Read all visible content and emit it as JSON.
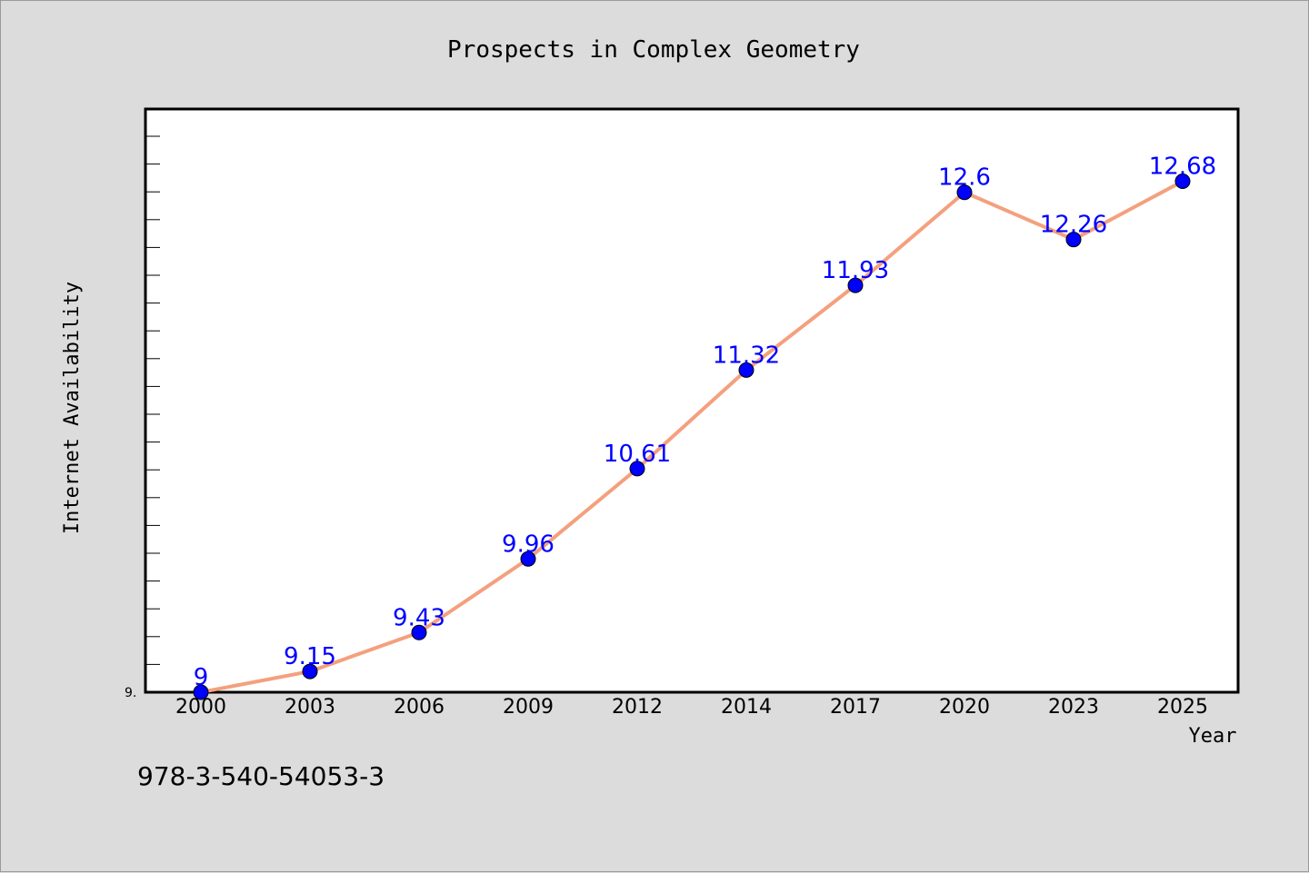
{
  "footer_text": "978-3-540-54053-3",
  "chart_data": {
    "type": "line",
    "title": "Prospects in Complex Geometry",
    "xlabel": "Year",
    "ylabel": "Internet Availability",
    "ymin_label": "9.",
    "categories": [
      "2000",
      "2003",
      "2006",
      "2009",
      "2012",
      "2014",
      "2017",
      "2020",
      "2023",
      "2025"
    ],
    "values": [
      9,
      9.15,
      9.43,
      9.96,
      10.61,
      11.32,
      11.93,
      12.6,
      12.26,
      12.68
    ],
    "data_labels": [
      "9",
      "9.15",
      "9.43",
      "9.96",
      "10.61",
      "11.32",
      "11.93",
      "12.6",
      "12.26",
      "12.68"
    ],
    "ylim": [
      9.0,
      13.2
    ],
    "grid": false,
    "legend": "none",
    "colors": {
      "line": "#f4a07e",
      "marker": "#0000ff",
      "labels": "#0000ff",
      "plot_bg": "#ffffff",
      "figure_bg": "#dcdcdc"
    }
  }
}
